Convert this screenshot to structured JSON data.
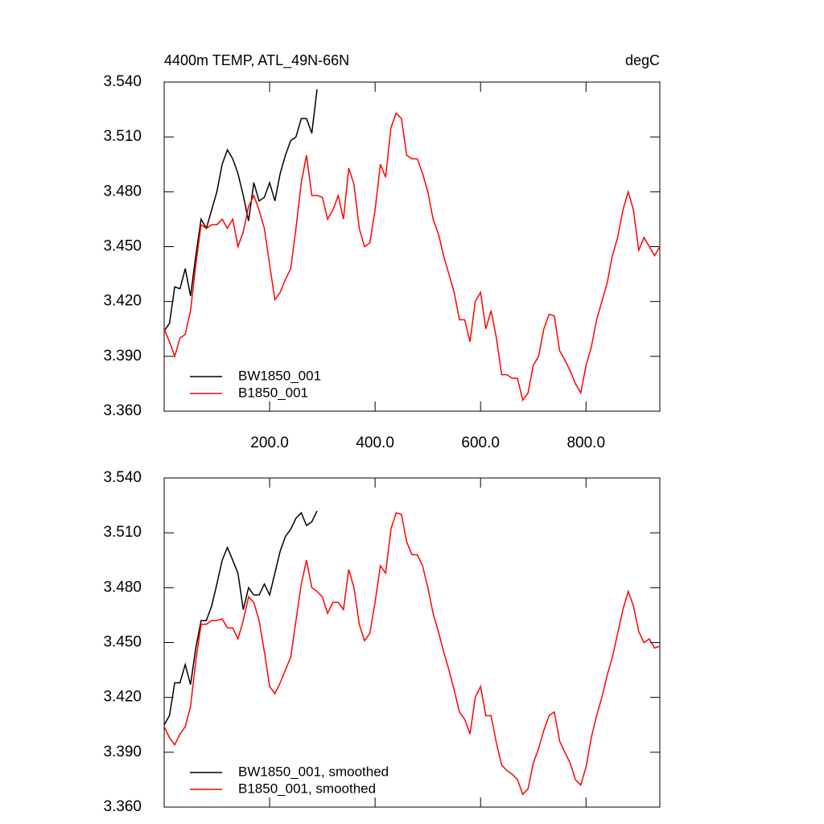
{
  "chart_data": [
    {
      "type": "line",
      "title": "4400m TEMP, ATL_49N-66N",
      "units": "degC",
      "xlim": [
        0,
        940
      ],
      "ylim": [
        3.36,
        3.54
      ],
      "xticks": [
        {
          "value": 200,
          "label": "200.0"
        },
        {
          "value": 400,
          "label": "400.0"
        },
        {
          "value": 600,
          "label": "600.0"
        },
        {
          "value": 800,
          "label": "800.0"
        }
      ],
      "yticks": [
        {
          "value": 3.36,
          "label": "3.360"
        },
        {
          "value": 3.39,
          "label": "3.390"
        },
        {
          "value": 3.42,
          "label": "3.420"
        },
        {
          "value": 3.45,
          "label": "3.450"
        },
        {
          "value": 3.48,
          "label": "3.480"
        },
        {
          "value": 3.51,
          "label": "3.510"
        },
        {
          "value": 3.54,
          "label": "3.540"
        }
      ],
      "legend": "lower left",
      "series": [
        {
          "name": "BW1850_001",
          "color": "#000000",
          "x": [
            0,
            10,
            20,
            30,
            40,
            50,
            60,
            70,
            80,
            90,
            100,
            110,
            120,
            130,
            140,
            150,
            160,
            170,
            180,
            190,
            200,
            210,
            220,
            230,
            240,
            250,
            260,
            270,
            280,
            290
          ],
          "values": [
            3.404,
            3.408,
            3.428,
            3.427,
            3.438,
            3.423,
            3.445,
            3.465,
            3.46,
            3.47,
            3.48,
            3.495,
            3.503,
            3.498,
            3.49,
            3.478,
            3.464,
            3.485,
            3.475,
            3.477,
            3.485,
            3.475,
            3.49,
            3.5,
            3.508,
            3.51,
            3.52,
            3.52,
            3.512,
            3.536
          ]
        },
        {
          "name": "B1850_001",
          "color": "#ff0000",
          "x": [
            0,
            10,
            20,
            30,
            40,
            50,
            60,
            70,
            80,
            90,
            100,
            110,
            120,
            130,
            140,
            150,
            160,
            170,
            180,
            190,
            200,
            210,
            220,
            230,
            240,
            250,
            260,
            270,
            280,
            290,
            300,
            310,
            320,
            330,
            340,
            350,
            360,
            370,
            380,
            390,
            400,
            410,
            420,
            430,
            440,
            450,
            460,
            470,
            480,
            490,
            500,
            510,
            520,
            530,
            540,
            550,
            560,
            570,
            580,
            590,
            600,
            610,
            620,
            630,
            640,
            650,
            660,
            670,
            680,
            690,
            700,
            710,
            720,
            730,
            740,
            750,
            760,
            770,
            780,
            790,
            800,
            810,
            820,
            830,
            840,
            850,
            860,
            870,
            880,
            890,
            900,
            910,
            920,
            930,
            940
          ],
          "values": [
            3.405,
            3.398,
            3.39,
            3.4,
            3.402,
            3.415,
            3.44,
            3.462,
            3.46,
            3.462,
            3.462,
            3.465,
            3.46,
            3.465,
            3.45,
            3.458,
            3.472,
            3.478,
            3.47,
            3.46,
            3.44,
            3.421,
            3.425,
            3.432,
            3.438,
            3.46,
            3.485,
            3.5,
            3.478,
            3.478,
            3.477,
            3.465,
            3.47,
            3.478,
            3.465,
            3.493,
            3.484,
            3.46,
            3.45,
            3.452,
            3.47,
            3.495,
            3.488,
            3.515,
            3.523,
            3.52,
            3.5,
            3.498,
            3.498,
            3.49,
            3.48,
            3.465,
            3.457,
            3.445,
            3.435,
            3.425,
            3.41,
            3.41,
            3.398,
            3.42,
            3.425,
            3.405,
            3.415,
            3.4,
            3.38,
            3.38,
            3.378,
            3.378,
            3.366,
            3.37,
            3.385,
            3.39,
            3.405,
            3.413,
            3.412,
            3.393,
            3.388,
            3.382,
            3.375,
            3.37,
            3.385,
            3.395,
            3.41,
            3.42,
            3.43,
            3.445,
            3.455,
            3.47,
            3.48,
            3.47,
            3.448,
            3.455,
            3.45,
            3.445,
            3.45
          ]
        }
      ]
    },
    {
      "type": "line",
      "xlim": [
        0,
        940
      ],
      "ylim": [
        3.36,
        3.54
      ],
      "xticks": [
        200,
        400,
        600,
        800
      ],
      "yticks": [
        {
          "value": 3.36,
          "label": "3.360"
        },
        {
          "value": 3.39,
          "label": "3.390"
        },
        {
          "value": 3.42,
          "label": "3.420"
        },
        {
          "value": 3.45,
          "label": "3.450"
        },
        {
          "value": 3.48,
          "label": "3.480"
        },
        {
          "value": 3.51,
          "label": "3.510"
        },
        {
          "value": 3.54,
          "label": "3.540"
        }
      ],
      "legend": "lower left",
      "series": [
        {
          "name": "BW1850_001, smoothed",
          "color": "#000000",
          "x": [
            0,
            10,
            20,
            30,
            40,
            50,
            60,
            70,
            80,
            90,
            100,
            110,
            120,
            130,
            140,
            150,
            160,
            170,
            180,
            190,
            200,
            210,
            220,
            230,
            240,
            250,
            260,
            270,
            280,
            290
          ],
          "values": [
            3.405,
            3.41,
            3.428,
            3.428,
            3.438,
            3.427,
            3.447,
            3.462,
            3.462,
            3.47,
            3.482,
            3.495,
            3.502,
            3.495,
            3.488,
            3.468,
            3.48,
            3.476,
            3.476,
            3.482,
            3.476,
            3.488,
            3.5,
            3.508,
            3.512,
            3.518,
            3.521,
            3.514,
            3.516,
            3.522
          ]
        },
        {
          "name": "B1850_001, smoothed",
          "color": "#ff0000",
          "x": [
            0,
            10,
            20,
            30,
            40,
            50,
            60,
            70,
            80,
            90,
            100,
            110,
            120,
            130,
            140,
            150,
            160,
            170,
            180,
            190,
            200,
            210,
            220,
            230,
            240,
            250,
            260,
            270,
            280,
            290,
            300,
            310,
            320,
            330,
            340,
            350,
            360,
            370,
            380,
            390,
            400,
            410,
            420,
            430,
            440,
            450,
            460,
            470,
            480,
            490,
            500,
            510,
            520,
            530,
            540,
            550,
            560,
            570,
            580,
            590,
            600,
            610,
            620,
            630,
            640,
            650,
            660,
            670,
            680,
            690,
            700,
            710,
            720,
            730,
            740,
            750,
            760,
            770,
            780,
            790,
            800,
            810,
            820,
            830,
            840,
            850,
            860,
            870,
            880,
            890,
            900,
            910,
            920,
            930,
            940
          ],
          "values": [
            3.404,
            3.398,
            3.394,
            3.4,
            3.404,
            3.415,
            3.44,
            3.46,
            3.46,
            3.462,
            3.462,
            3.463,
            3.458,
            3.458,
            3.452,
            3.462,
            3.475,
            3.472,
            3.462,
            3.445,
            3.426,
            3.422,
            3.428,
            3.435,
            3.442,
            3.462,
            3.482,
            3.495,
            3.48,
            3.478,
            3.475,
            3.466,
            3.472,
            3.472,
            3.468,
            3.49,
            3.48,
            3.46,
            3.451,
            3.455,
            3.472,
            3.492,
            3.488,
            3.512,
            3.521,
            3.52,
            3.505,
            3.498,
            3.498,
            3.492,
            3.48,
            3.466,
            3.456,
            3.445,
            3.435,
            3.424,
            3.412,
            3.408,
            3.4,
            3.42,
            3.426,
            3.41,
            3.41,
            3.395,
            3.383,
            3.38,
            3.378,
            3.375,
            3.367,
            3.37,
            3.384,
            3.392,
            3.402,
            3.41,
            3.412,
            3.396,
            3.39,
            3.384,
            3.375,
            3.372,
            3.382,
            3.398,
            3.41,
            3.42,
            3.432,
            3.442,
            3.455,
            3.468,
            3.478,
            3.47,
            3.456,
            3.45,
            3.452,
            3.447,
            3.448
          ]
        }
      ]
    }
  ]
}
